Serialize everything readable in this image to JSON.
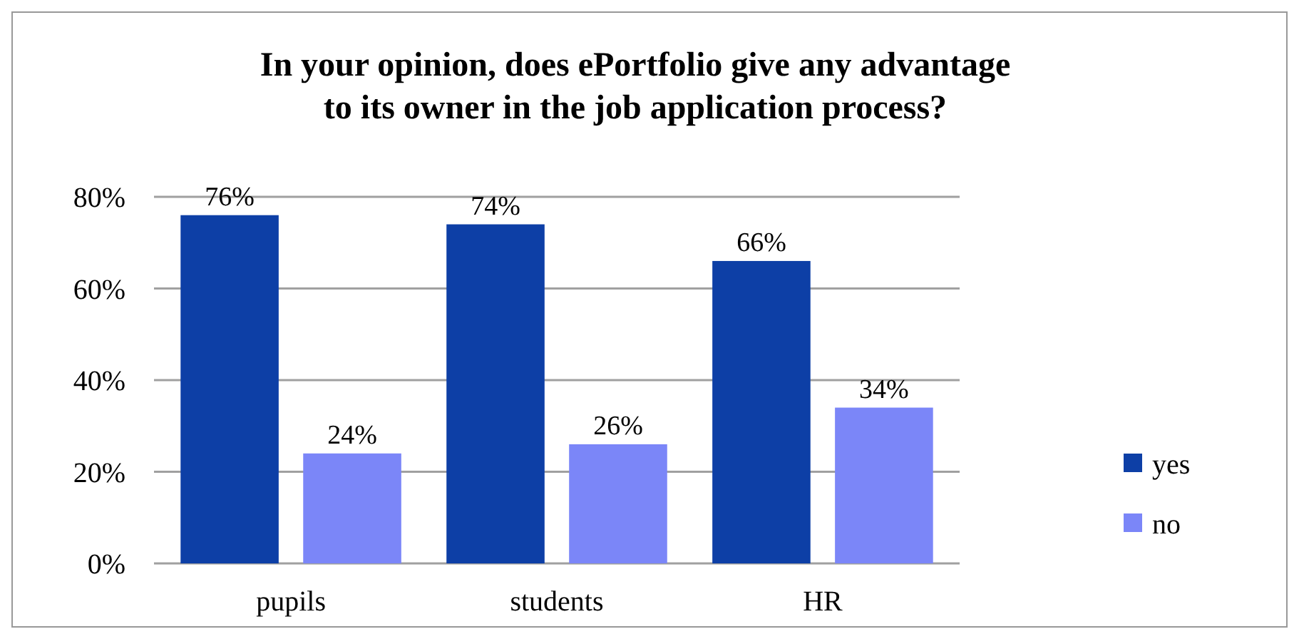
{
  "chart_data": {
    "type": "bar",
    "title": "In your opinion, does ePortfolio give any advantage\nto its owner in the job application process?",
    "categories": [
      "pupils",
      "students",
      "HR"
    ],
    "series": [
      {
        "name": "yes",
        "color": "#0d3fa6",
        "values": [
          76,
          74,
          66
        ],
        "value_labels": [
          "76%",
          "74%",
          "66%"
        ]
      },
      {
        "name": "no",
        "color": "#7b86f8",
        "values": [
          24,
          26,
          34
        ],
        "value_labels": [
          "24%",
          "26%",
          "34%"
        ]
      }
    ],
    "ylim": [
      0,
      80
    ],
    "yticks": [
      {
        "value": 0,
        "label": "0%"
      },
      {
        "value": 20,
        "label": "20%"
      },
      {
        "value": 40,
        "label": "40%"
      },
      {
        "value": 60,
        "label": "60%"
      },
      {
        "value": 80,
        "label": "80%"
      }
    ],
    "grid": "y",
    "legend": "right"
  }
}
